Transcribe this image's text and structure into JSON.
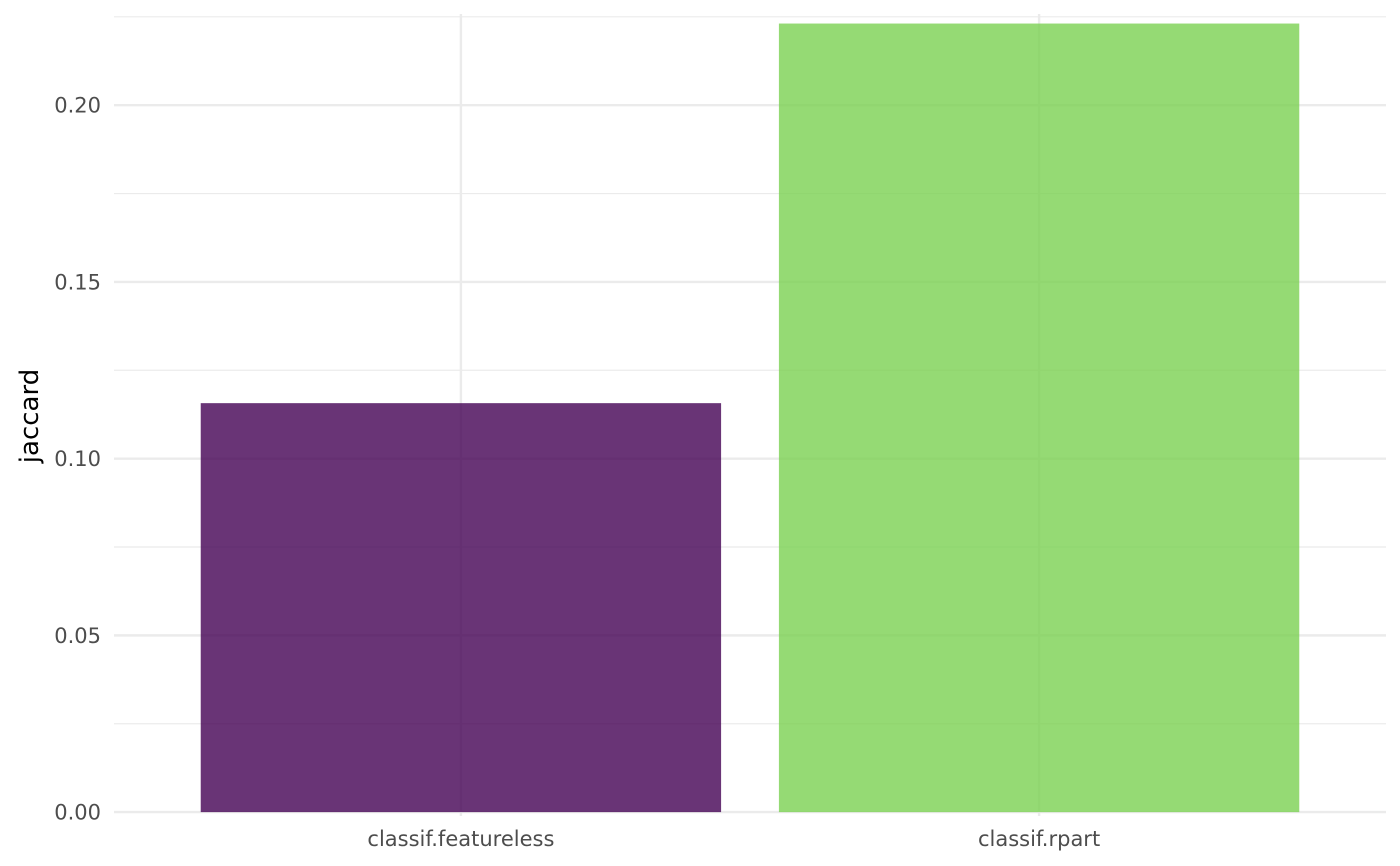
{
  "chart_data": {
    "type": "bar",
    "title": "",
    "xlabel": "",
    "ylabel": "jaccard",
    "categories": [
      "classif.featureless",
      "classif.rpart"
    ],
    "values": [
      0.1157,
      0.2231
    ],
    "colors": [
      "#440154",
      "#7AD151"
    ],
    "bar_opacity": 0.8,
    "ylim": [
      -0.0011,
      0.2258
    ],
    "yticks": [
      0.0,
      0.05,
      0.1,
      0.15,
      0.2
    ],
    "ytick_labels": [
      "0.00",
      "0.05",
      "0.10",
      "0.15",
      "0.20"
    ],
    "grid": true,
    "legend": "none",
    "theme": "minimal"
  }
}
